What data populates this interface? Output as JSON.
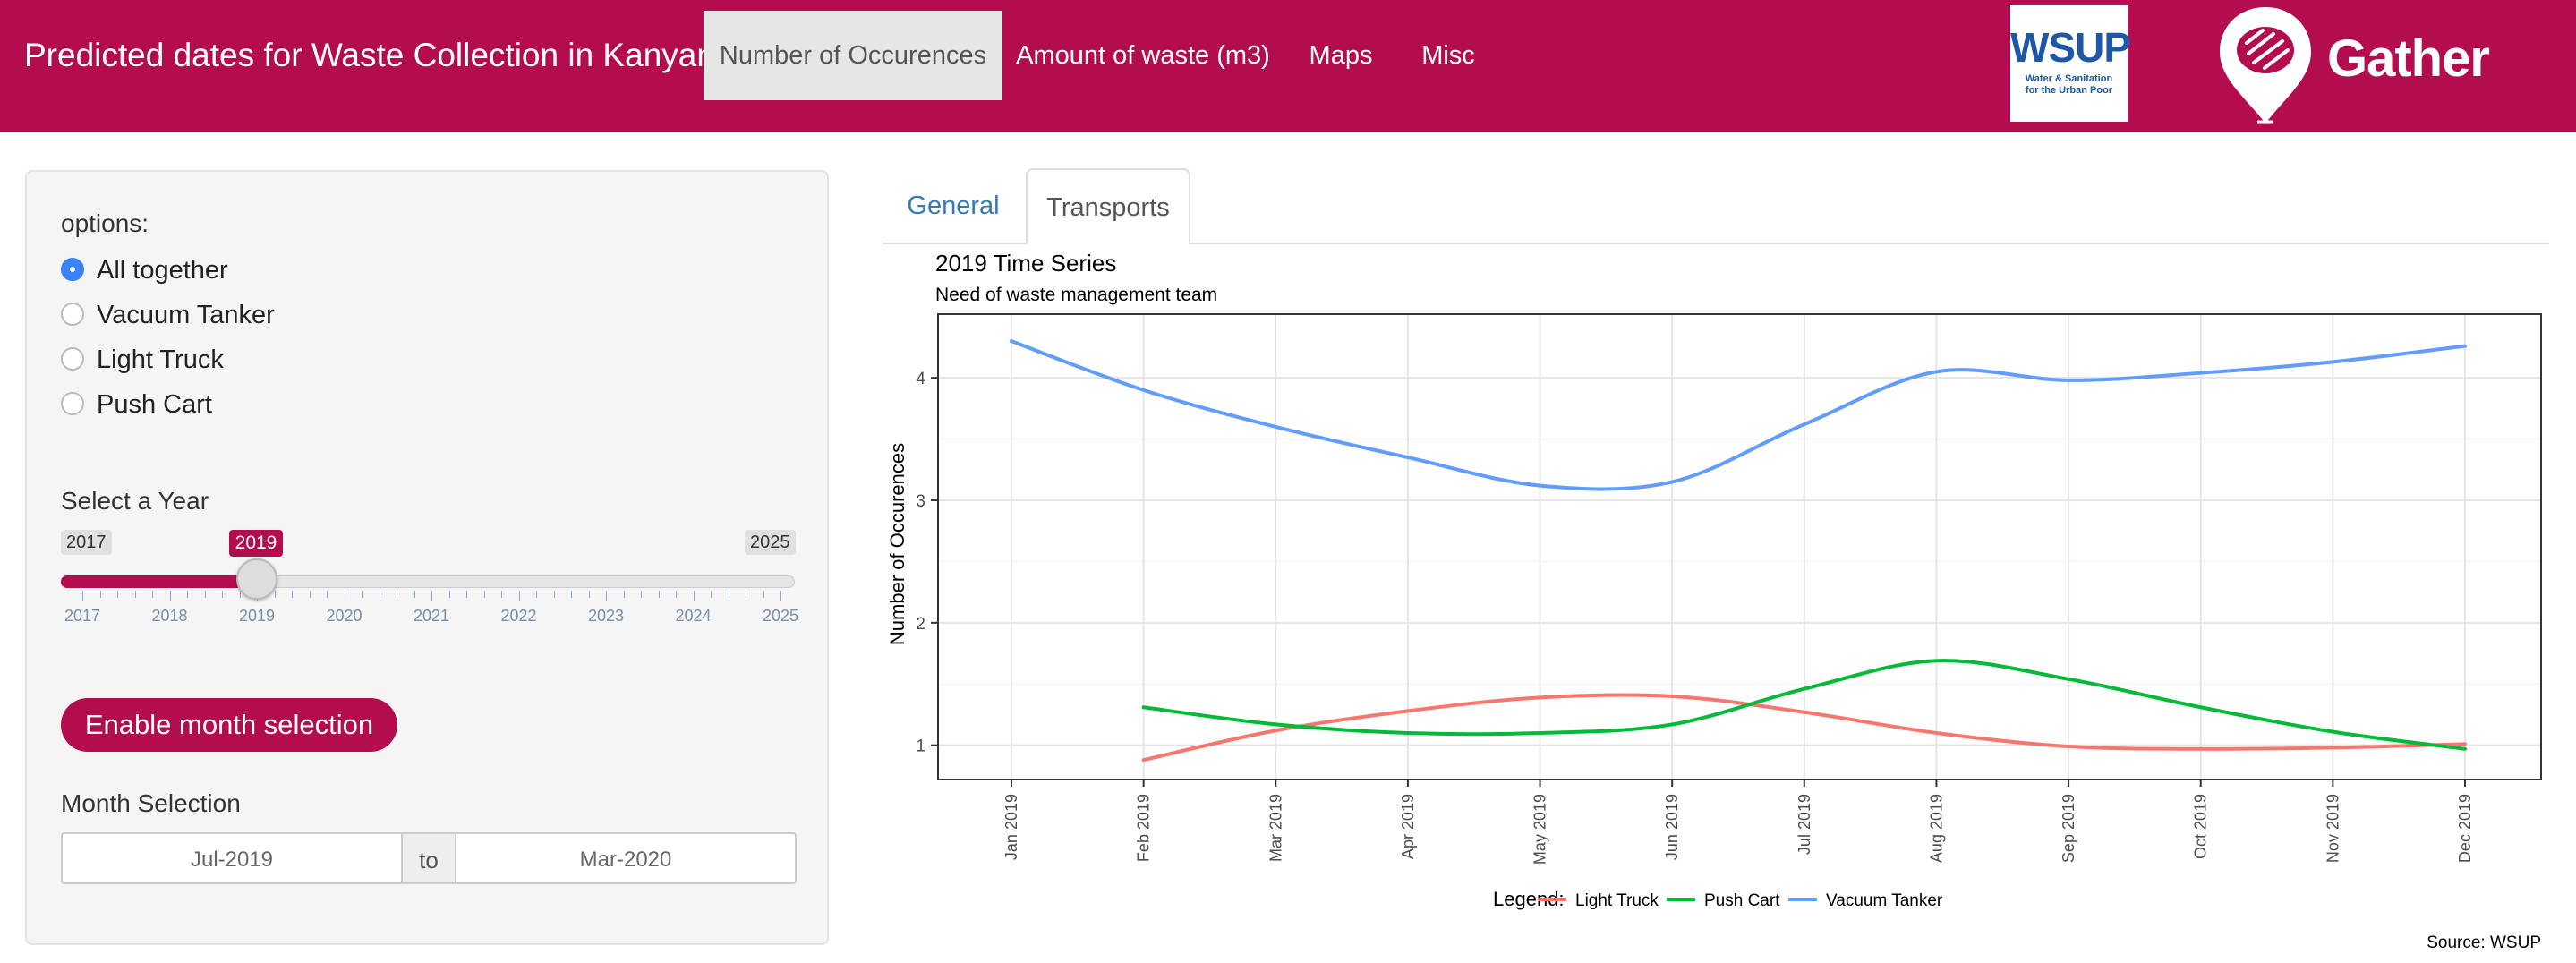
{
  "navbar": {
    "brand": "Predicted dates for Waste Collection in Kanyama",
    "items": [
      {
        "label": "Number of Occurences",
        "active": true
      },
      {
        "label": "Amount of waste (m3)",
        "active": false
      },
      {
        "label": "Maps",
        "active": false
      },
      {
        "label": "Misc",
        "active": false
      }
    ],
    "wsup_logo": {
      "title": "WSUP",
      "subtitle_1": "Water & Sanitation",
      "subtitle_2": "for the Urban Poor"
    },
    "gather_logo": {
      "text": "Gather"
    }
  },
  "sidebar": {
    "options_label": "options:",
    "options": [
      {
        "label": "All together",
        "selected": true
      },
      {
        "label": "Vacuum Tanker",
        "selected": false
      },
      {
        "label": "Light Truck",
        "selected": false
      },
      {
        "label": "Push Cart",
        "selected": false
      }
    ],
    "year_label": "Select a Year",
    "year_slider": {
      "min": "2017",
      "max": "2025",
      "value": "2019",
      "ticks": [
        "2017",
        "2018",
        "2019",
        "2020",
        "2021",
        "2022",
        "2023",
        "2024",
        "2025"
      ]
    },
    "month_button": "Enable month selection",
    "month_label": "Month Selection",
    "month_from": "Jul-2019",
    "month_sep": "to",
    "month_to": "Mar-2020"
  },
  "tabs": [
    {
      "label": "General",
      "active": false
    },
    {
      "label": "Transports",
      "active": true
    }
  ],
  "colors": {
    "brand": "#b30d4f",
    "light_truck": "#f8766d",
    "push_cart": "#00ba38",
    "vacuum_tanker": "#619cff"
  },
  "chart_data": {
    "type": "line",
    "title": "2019 Time Series",
    "subtitle": "Need of waste management team",
    "xlabel": "",
    "ylabel": "Number of Occurences",
    "categories": [
      "Jan 2019",
      "Feb 2019",
      "Mar 2019",
      "Apr 2019",
      "May 2019",
      "Jun 2019",
      "Jul 2019",
      "Aug 2019",
      "Sep 2019",
      "Oct 2019",
      "Nov 2019",
      "Dec 2019"
    ],
    "y_ticks": [
      1,
      2,
      3,
      4
    ],
    "ylim": [
      0.72,
      4.52
    ],
    "grid": true,
    "legend_title": "Legend:",
    "legend_position": "bottom",
    "series": [
      {
        "name": "Light Truck",
        "color": "#f8766d",
        "values": [
          null,
          0.88,
          1.12,
          1.28,
          1.39,
          1.4,
          1.27,
          1.1,
          0.99,
          0.97,
          0.98,
          1.01
        ]
      },
      {
        "name": "Push Cart",
        "color": "#00ba38",
        "values": [
          null,
          1.31,
          1.17,
          1.1,
          1.1,
          1.17,
          1.46,
          1.69,
          1.54,
          1.31,
          1.11,
          0.97
        ]
      },
      {
        "name": "Vacuum Tanker",
        "color": "#619cff",
        "values": [
          4.3,
          3.9,
          3.6,
          3.35,
          3.12,
          3.15,
          3.62,
          4.05,
          3.98,
          4.04,
          4.13,
          4.26
        ]
      }
    ],
    "caption": "Source: WSUP"
  }
}
